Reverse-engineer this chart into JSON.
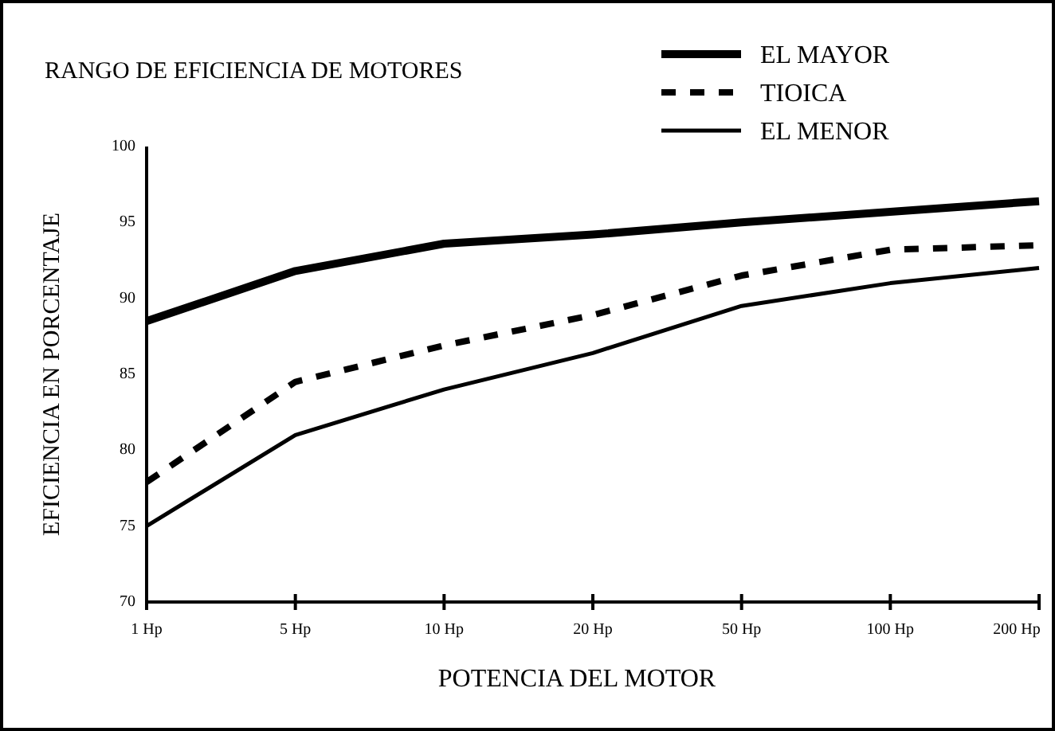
{
  "chart_data": {
    "type": "line",
    "title": "RANGO DE EFICIENCIA DE MOTORES",
    "xlabel": "POTENCIA DEL MOTOR",
    "ylabel": "EFICIENCIA EN PORCENTAJE",
    "categories": [
      "1 Hp",
      "5 Hp",
      "10 Hp",
      "20 Hp",
      "50 Hp",
      "100 Hp",
      "200 Hp"
    ],
    "series": [
      {
        "name": "EL MAYOR",
        "color": "#000000",
        "line_style": "solid",
        "values": [
          88.5,
          91.8,
          93.6,
          94.2,
          95.0,
          95.7,
          96.4
        ]
      },
      {
        "name": "TIOICA",
        "color": "#000000",
        "line_style": "dashed",
        "values": [
          77.9,
          84.5,
          86.9,
          88.9,
          91.5,
          93.2,
          93.5
        ]
      },
      {
        "name": "EL MENOR",
        "color": "#000000",
        "line_style": "solid",
        "values": [
          75.0,
          81.0,
          84.0,
          86.4,
          89.5,
          91.0,
          92.0
        ]
      }
    ],
    "ylim": [
      70,
      100
    ],
    "yticks": [
      70,
      75,
      80,
      85,
      90,
      95,
      100
    ],
    "grid": false,
    "legend": "top right",
    "marker": "none"
  }
}
